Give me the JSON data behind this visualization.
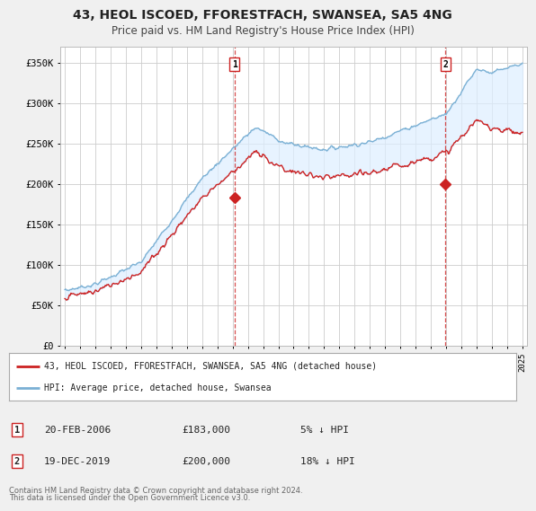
{
  "title": "43, HEOL ISCOED, FFORESTFACH, SWANSEA, SA5 4NG",
  "subtitle": "Price paid vs. HM Land Registry's House Price Index (HPI)",
  "title_fontsize": 10,
  "subtitle_fontsize": 8.5,
  "ylabel_ticks": [
    "£0",
    "£50K",
    "£100K",
    "£150K",
    "£200K",
    "£250K",
    "£300K",
    "£350K"
  ],
  "ytick_vals": [
    0,
    50000,
    100000,
    150000,
    200000,
    250000,
    300000,
    350000
  ],
  "ylim": [
    0,
    370000
  ],
  "xlim_start": 1994.7,
  "xlim_end": 2025.3,
  "background_color": "#f0f0f0",
  "plot_bg_color": "#ffffff",
  "grid_color": "#cccccc",
  "hpi_color": "#7ab0d4",
  "price_color": "#cc2222",
  "fill_color": "#ddeeff",
  "sale1_x": 2006.12,
  "sale1_y": 183000,
  "sale2_x": 2019.96,
  "sale2_y": 200000,
  "legend_label_price": "43, HEOL ISCOED, FFORESTFACH, SWANSEA, SA5 4NG (detached house)",
  "legend_label_hpi": "HPI: Average price, detached house, Swansea",
  "sale1_date": "20-FEB-2006",
  "sale1_price": "£183,000",
  "sale1_note": "5% ↓ HPI",
  "sale2_date": "19-DEC-2019",
  "sale2_price": "£200,000",
  "sale2_note": "18% ↓ HPI",
  "footer1": "Contains HM Land Registry data © Crown copyright and database right 2024.",
  "footer2": "This data is licensed under the Open Government Licence v3.0."
}
